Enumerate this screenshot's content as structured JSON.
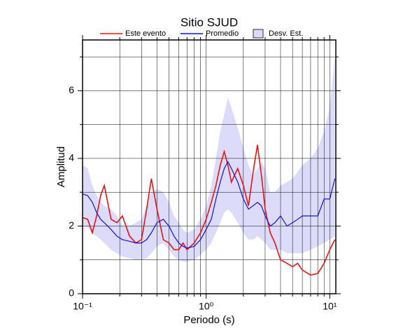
{
  "chart_data": {
    "type": "line",
    "title": "Sitio SJUD",
    "x_label": "Periodo (s)",
    "y_label": "Amplitud",
    "xscale": "log",
    "grid": true,
    "xlim": [
      0.1,
      11.2
    ],
    "ylim": [
      0,
      7.5
    ],
    "xticks": [
      {
        "value": 0.1,
        "label": "10⁻¹"
      },
      {
        "value": 1,
        "label": "10⁰"
      },
      {
        "value": 10,
        "label": "10¹"
      }
    ],
    "x_minor_ticks": [
      0.2,
      0.3,
      0.4,
      0.5,
      0.6,
      0.7,
      0.8,
      0.9,
      2,
      3,
      4,
      5,
      6,
      7,
      8,
      9
    ],
    "yticks": [
      0,
      2,
      4,
      6
    ],
    "y_minor_ticks": [
      1,
      3,
      5,
      7
    ],
    "x": [
      0.1,
      0.11,
      0.12,
      0.13,
      0.14,
      0.15,
      0.17,
      0.19,
      0.21,
      0.24,
      0.27,
      0.3,
      0.33,
      0.36,
      0.4,
      0.45,
      0.5,
      0.55,
      0.6,
      0.65,
      0.7,
      0.8,
      0.9,
      1.0,
      1.1,
      1.2,
      1.3,
      1.4,
      1.5,
      1.6,
      1.8,
      2.0,
      2.2,
      2.4,
      2.6,
      2.8,
      3.0,
      3.3,
      3.6,
      4.0,
      4.5,
      5.0,
      5.5,
      6.0,
      7.0,
      8.0,
      9.0,
      10.0,
      11.0
    ],
    "series": [
      {
        "name": "Este evento",
        "color": "#ee1111",
        "values": [
          2.25,
          2.2,
          1.8,
          2.3,
          2.9,
          3.2,
          2.2,
          2.1,
          2.3,
          1.7,
          1.5,
          1.6,
          2.5,
          3.4,
          2.5,
          1.6,
          1.5,
          1.3,
          1.3,
          1.5,
          1.3,
          1.5,
          1.8,
          2.2,
          2.7,
          3.2,
          3.8,
          4.2,
          3.8,
          3.3,
          3.7,
          3.2,
          2.6,
          3.6,
          4.4,
          3.5,
          2.5,
          1.8,
          1.5,
          1.0,
          0.9,
          0.8,
          0.9,
          0.7,
          0.55,
          0.6,
          0.9,
          1.3,
          1.6
        ]
      },
      {
        "name": "Promedio",
        "color": "#1111dd",
        "values": [
          2.95,
          2.9,
          2.7,
          2.4,
          2.2,
          2.1,
          1.9,
          1.7,
          1.6,
          1.55,
          1.5,
          1.5,
          1.6,
          1.8,
          2.1,
          2.2,
          2.0,
          1.7,
          1.5,
          1.4,
          1.35,
          1.4,
          1.6,
          1.9,
          2.2,
          2.8,
          3.3,
          3.7,
          3.9,
          3.7,
          3.3,
          2.8,
          2.5,
          2.6,
          2.7,
          2.6,
          2.3,
          2.0,
          2.1,
          2.3,
          2.0,
          2.1,
          2.2,
          2.3,
          2.3,
          2.3,
          2.8,
          2.8,
          3.4
        ]
      },
      {
        "name": "Desv. Est.",
        "color": "#dcdcfa",
        "upper": [
          3.8,
          3.7,
          3.2,
          2.9,
          2.7,
          2.6,
          2.5,
          2.3,
          2.0,
          2.0,
          2.1,
          2.2,
          2.6,
          3.0,
          3.1,
          3.0,
          2.7,
          2.3,
          2.1,
          1.9,
          1.8,
          1.9,
          2.2,
          2.6,
          3.2,
          4.0,
          4.8,
          5.3,
          5.8,
          5.5,
          4.9,
          4.3,
          3.8,
          3.5,
          3.7,
          3.9,
          3.7,
          3.0,
          3.0,
          3.2,
          3.3,
          3.4,
          3.6,
          3.8,
          4.0,
          4.3,
          4.8,
          5.5,
          7.0
        ],
        "lower": [
          2.0,
          1.95,
          1.8,
          1.7,
          1.6,
          1.5,
          1.3,
          1.2,
          1.1,
          1.05,
          1.0,
          1.0,
          1.05,
          1.2,
          1.4,
          1.5,
          1.3,
          1.1,
          1.0,
          0.95,
          0.95,
          1.0,
          1.15,
          1.3,
          1.5,
          1.8,
          2.1,
          2.4,
          2.5,
          2.4,
          2.1,
          1.8,
          1.6,
          1.6,
          1.7,
          1.6,
          1.5,
          1.3,
          1.3,
          1.3,
          1.2,
          1.2,
          1.2,
          1.2,
          1.3,
          1.4,
          1.5,
          1.6,
          1.7
        ]
      }
    ]
  }
}
